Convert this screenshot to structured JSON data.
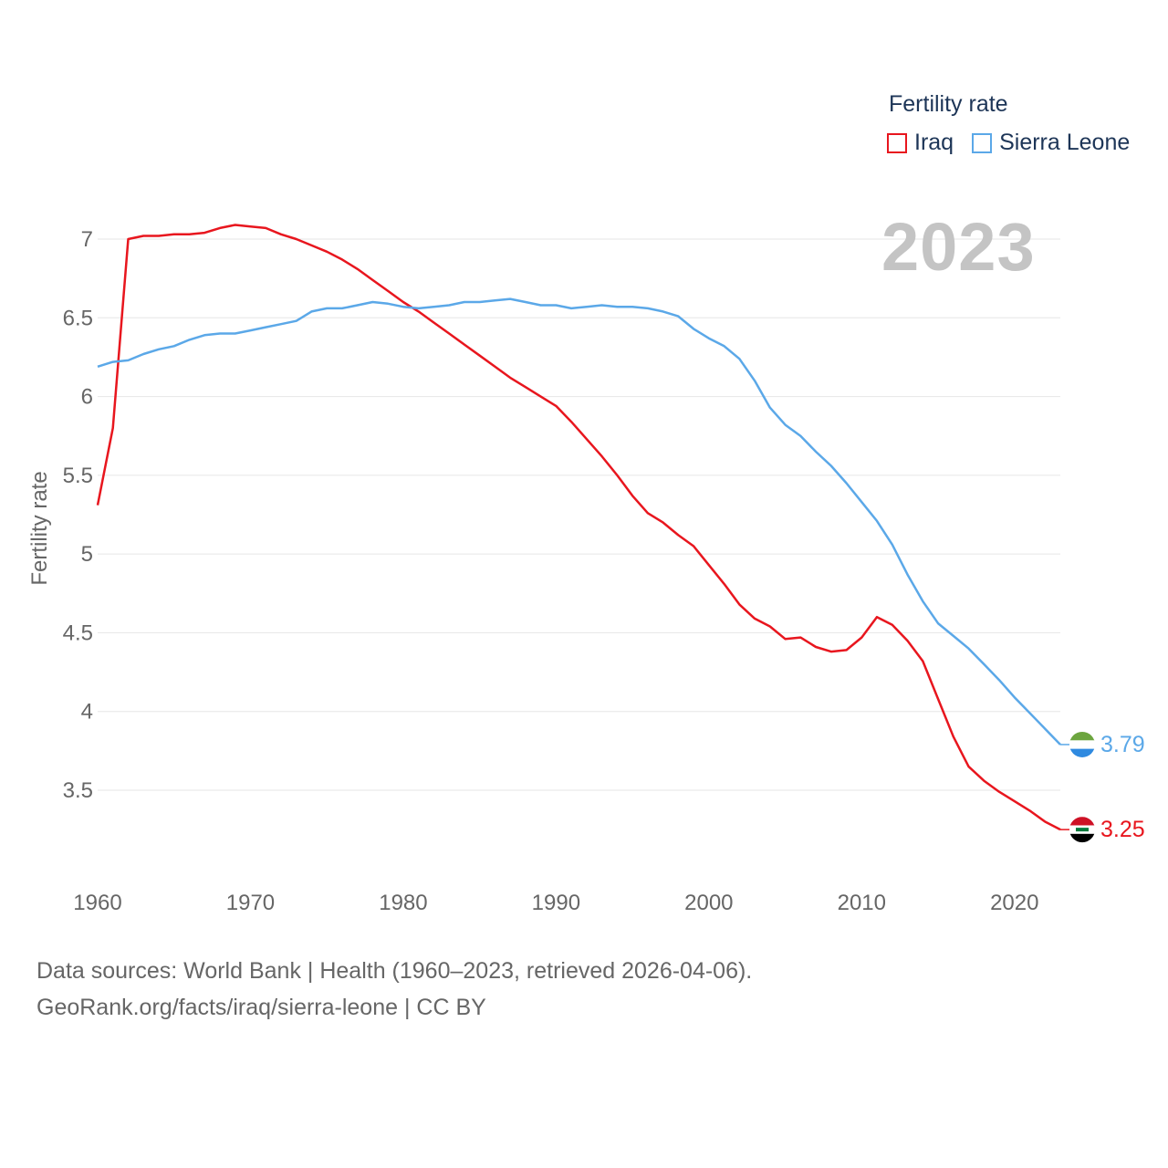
{
  "legend": {
    "title": "Fertility rate",
    "items": [
      {
        "label": "Iraq",
        "color": "#e8161e"
      },
      {
        "label": "Sierra Leone",
        "color": "#5ba8e8"
      }
    ]
  },
  "year_badge": "2023",
  "source": {
    "line1": "Data sources: World Bank | Health (1960–2023, retrieved 2026-04-06).",
    "line2": "GeoRank.org/facts/iraq/sierra-leone | CC BY"
  },
  "chart_data": {
    "type": "line",
    "ylabel": "Fertility rate",
    "xlabel": "",
    "xlim": [
      1960,
      2023
    ],
    "ylim": [
      3.0,
      7.25
    ],
    "yticks": [
      "3.5",
      "4",
      "4.5",
      "5",
      "5.5",
      "6",
      "6.5",
      "7"
    ],
    "xticks": [
      "1960",
      "1970",
      "1980",
      "1990",
      "2000",
      "2010",
      "2020"
    ],
    "series": [
      {
        "name": "Iraq",
        "color": "#e8161e",
        "end_label": "3.25",
        "flag": "iraq",
        "x": [
          1960,
          1961,
          1962,
          1963,
          1964,
          1965,
          1966,
          1967,
          1968,
          1969,
          1970,
          1971,
          1972,
          1973,
          1974,
          1975,
          1976,
          1977,
          1978,
          1979,
          1980,
          1981,
          1982,
          1983,
          1984,
          1985,
          1986,
          1987,
          1988,
          1989,
          1990,
          1991,
          1992,
          1993,
          1994,
          1995,
          1996,
          1997,
          1998,
          1999,
          2000,
          2001,
          2002,
          2003,
          2004,
          2005,
          2006,
          2007,
          2008,
          2009,
          2010,
          2011,
          2012,
          2013,
          2014,
          2015,
          2016,
          2017,
          2018,
          2019,
          2020,
          2021,
          2022,
          2023
        ],
        "values": [
          5.31,
          5.8,
          7.0,
          7.02,
          7.02,
          7.03,
          7.03,
          7.04,
          7.07,
          7.09,
          7.08,
          7.07,
          7.03,
          7.0,
          6.96,
          6.92,
          6.87,
          6.81,
          6.74,
          6.67,
          6.6,
          6.54,
          6.47,
          6.4,
          6.33,
          6.26,
          6.19,
          6.12,
          6.06,
          6.0,
          5.94,
          5.84,
          5.73,
          5.62,
          5.5,
          5.37,
          5.26,
          5.2,
          5.12,
          5.05,
          4.93,
          4.81,
          4.68,
          4.59,
          4.54,
          4.46,
          4.47,
          4.41,
          4.38,
          4.39,
          4.47,
          4.6,
          4.55,
          4.45,
          4.32,
          4.08,
          3.84,
          3.65,
          3.56,
          3.49,
          3.43,
          3.37,
          3.3,
          3.25
        ]
      },
      {
        "name": "Sierra Leone",
        "color": "#5ba8e8",
        "end_label": "3.79",
        "flag": "sierra-leone",
        "x": [
          1960,
          1961,
          1962,
          1963,
          1964,
          1965,
          1966,
          1967,
          1968,
          1969,
          1970,
          1971,
          1972,
          1973,
          1974,
          1975,
          1976,
          1977,
          1978,
          1979,
          1980,
          1981,
          1982,
          1983,
          1984,
          1985,
          1986,
          1987,
          1988,
          1989,
          1990,
          1991,
          1992,
          1993,
          1994,
          1995,
          1996,
          1997,
          1998,
          1999,
          2000,
          2001,
          2002,
          2003,
          2004,
          2005,
          2006,
          2007,
          2008,
          2009,
          2010,
          2011,
          2012,
          2013,
          2014,
          2015,
          2016,
          2017,
          2018,
          2019,
          2020,
          2021,
          2022,
          2023
        ],
        "values": [
          6.19,
          6.22,
          6.23,
          6.27,
          6.3,
          6.32,
          6.36,
          6.39,
          6.4,
          6.4,
          6.42,
          6.44,
          6.46,
          6.48,
          6.54,
          6.56,
          6.56,
          6.58,
          6.6,
          6.59,
          6.57,
          6.56,
          6.57,
          6.58,
          6.6,
          6.6,
          6.61,
          6.62,
          6.6,
          6.58,
          6.58,
          6.56,
          6.57,
          6.58,
          6.57,
          6.57,
          6.56,
          6.54,
          6.51,
          6.43,
          6.37,
          6.32,
          6.24,
          6.1,
          5.93,
          5.82,
          5.75,
          5.65,
          5.56,
          5.45,
          5.33,
          5.21,
          5.06,
          4.87,
          4.7,
          4.56,
          4.48,
          4.4,
          4.3,
          4.2,
          4.09,
          3.99,
          3.89,
          3.79
        ]
      }
    ]
  }
}
